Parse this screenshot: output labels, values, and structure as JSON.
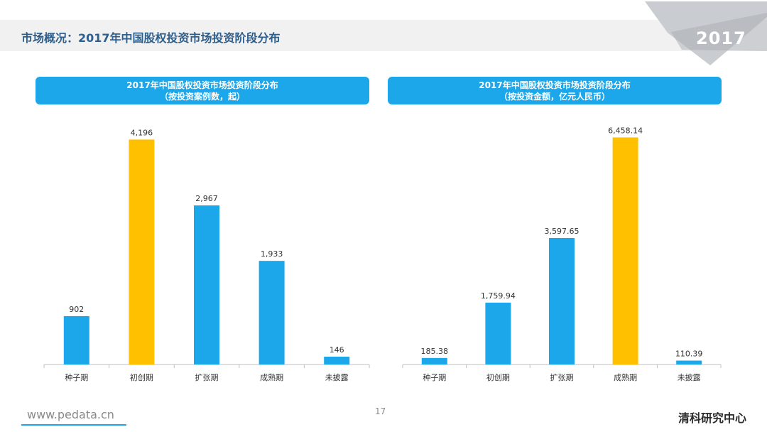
{
  "page": {
    "title": "市场概况：2017年中国股权投资市场投资阶段分布",
    "year_badge": "2017",
    "page_number": "17",
    "footer_url": "www.pedata.cn",
    "org_name": "清科研究中心"
  },
  "colors": {
    "bar_default": "#1ba7ea",
    "bar_highlight": "#ffc000",
    "header_bg": "#1ba7ea",
    "title_text": "#2e5f8c"
  },
  "chart_data": [
    {
      "type": "bar",
      "title": "2017年中国股权投资市场投资阶段分布",
      "subtitle": "（按投资案例数，起）",
      "categories": [
        "种子期",
        "初创期",
        "扩张期",
        "成熟期",
        "未披露"
      ],
      "values": [
        902,
        4196,
        2967,
        1933,
        146
      ],
      "value_labels": [
        "902",
        "4,196",
        "2,967",
        "1,933",
        "146"
      ],
      "highlight_index": 1,
      "ylim": [
        0,
        4400
      ],
      "grid": false,
      "legend": "none"
    },
    {
      "type": "bar",
      "title": "2017年中国股权投资市场投资阶段分布",
      "subtitle": "（按投资金额，亿元人民币）",
      "categories": [
        "种子期",
        "初创期",
        "扩张期",
        "成熟期",
        "未披露"
      ],
      "values": [
        185.38,
        1759.94,
        3597.65,
        6458.14,
        110.39
      ],
      "value_labels": [
        "185.38",
        "1,759.94",
        "3,597.65",
        "6,458.14",
        "110.39"
      ],
      "highlight_index": 3,
      "ylim": [
        0,
        6750
      ],
      "grid": false,
      "legend": "none"
    }
  ]
}
